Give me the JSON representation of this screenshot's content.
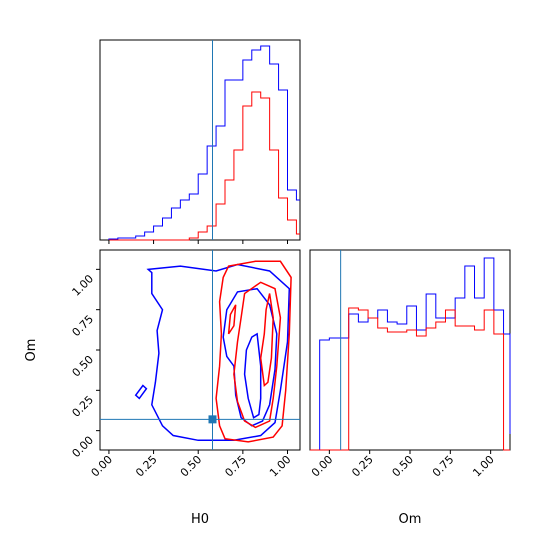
{
  "chart_data": {
    "type": "corner",
    "parameters": [
      "H0",
      "Om"
    ],
    "truth": {
      "H0": 0.58,
      "Om": 0.07
    },
    "colors": {
      "series_a": "#0000ff",
      "series_b": "#ff0000",
      "truth": "#1f77b4"
    },
    "ticks": {
      "H0": [
        "0.00",
        "0.25",
        "0.50",
        "0.75",
        "1.00"
      ],
      "Om": [
        "0.00",
        "0.25",
        "0.50",
        "0.75",
        "1.00"
      ]
    },
    "xlim": [
      -0.05,
      1.07
    ],
    "ylim": [
      -0.12,
      1.12
    ],
    "marginal_H0": {
      "bins": [
        0.0,
        0.05,
        0.1,
        0.15,
        0.2,
        0.25,
        0.3,
        0.35,
        0.4,
        0.45,
        0.5,
        0.55,
        0.6,
        0.65,
        0.7,
        0.75,
        0.8,
        0.85,
        0.9,
        0.95,
        1.0,
        1.05,
        1.07
      ],
      "blue": [
        0.005,
        0.01,
        0.01,
        0.02,
        0.04,
        0.07,
        0.11,
        0.16,
        0.2,
        0.23,
        0.33,
        0.47,
        0.57,
        0.8,
        0.8,
        0.9,
        0.95,
        0.97,
        0.88,
        0.75,
        0.25,
        0.2
      ],
      "red": [
        0.0,
        0.0,
        0.0,
        0.0,
        0.0,
        0.0,
        0.0,
        0.0,
        0.0,
        0.01,
        0.04,
        0.07,
        0.18,
        0.3,
        0.45,
        0.67,
        0.74,
        0.71,
        0.45,
        0.21,
        0.1,
        0.03
      ]
    },
    "marginal_Om": {
      "bins": [
        -0.12,
        -0.06,
        0.0,
        0.06,
        0.12,
        0.18,
        0.24,
        0.3,
        0.36,
        0.42,
        0.48,
        0.54,
        0.6,
        0.66,
        0.72,
        0.78,
        0.84,
        0.9,
        0.96,
        1.02,
        1.08,
        1.12
      ],
      "blue": [
        0.0,
        0.55,
        0.56,
        0.56,
        0.68,
        0.64,
        0.66,
        0.7,
        0.64,
        0.63,
        0.72,
        0.6,
        0.78,
        0.66,
        0.66,
        0.76,
        0.92,
        0.76,
        0.96,
        0.7,
        0.58,
        0.08
      ],
      "red": [
        0.0,
        0.0,
        0.0,
        0.0,
        0.71,
        0.7,
        0.66,
        0.61,
        0.59,
        0.59,
        0.6,
        0.57,
        0.61,
        0.64,
        0.7,
        0.62,
        0.62,
        0.6,
        0.7,
        0.58,
        0.0,
        0.0
      ]
    },
    "contours": {
      "blue": [
        [
          [
            0.22,
            1.0
          ],
          [
            0.4,
            1.02
          ],
          [
            0.6,
            0.99
          ],
          [
            0.72,
            1.03
          ],
          [
            0.9,
            0.99
          ],
          [
            1.01,
            0.88
          ],
          [
            1.0,
            0.55
          ],
          [
            0.96,
            0.25
          ],
          [
            0.93,
            0.05
          ],
          [
            0.85,
            -0.03
          ],
          [
            0.7,
            -0.06
          ],
          [
            0.5,
            -0.06
          ],
          [
            0.36,
            -0.03
          ],
          [
            0.3,
            0.03
          ],
          [
            0.24,
            0.16
          ],
          [
            0.26,
            0.3
          ],
          [
            0.28,
            0.48
          ],
          [
            0.27,
            0.62
          ],
          [
            0.3,
            0.75
          ],
          [
            0.24,
            0.85
          ],
          [
            0.24,
            0.98
          ]
        ],
        [
          [
            0.64,
            0.58
          ],
          [
            0.66,
            0.75
          ],
          [
            0.72,
            0.86
          ],
          [
            0.83,
            0.88
          ],
          [
            0.9,
            0.78
          ],
          [
            0.94,
            0.6
          ],
          [
            0.93,
            0.38
          ],
          [
            0.9,
            0.16
          ],
          [
            0.86,
            0.06
          ],
          [
            0.8,
            0.03
          ],
          [
            0.74,
            0.08
          ],
          [
            0.71,
            0.22
          ],
          [
            0.7,
            0.4
          ],
          [
            0.66,
            0.46
          ]
        ],
        [
          [
            0.76,
            0.35
          ],
          [
            0.77,
            0.5
          ],
          [
            0.8,
            0.58
          ],
          [
            0.83,
            0.6
          ],
          [
            0.85,
            0.4
          ],
          [
            0.85,
            0.2
          ],
          [
            0.84,
            0.1
          ],
          [
            0.81,
            0.08
          ],
          [
            0.78,
            0.2
          ]
        ],
        [
          [
            0.15,
            0.22
          ],
          [
            0.19,
            0.28
          ],
          [
            0.21,
            0.26
          ],
          [
            0.17,
            0.2
          ]
        ]
      ],
      "red": [
        [
          [
            0.67,
            1.02
          ],
          [
            0.82,
            1.05
          ],
          [
            0.96,
            1.05
          ],
          [
            1.02,
            0.95
          ],
          [
            1.01,
            0.6
          ],
          [
            0.99,
            0.25
          ],
          [
            0.97,
            0.03
          ],
          [
            0.92,
            -0.04
          ],
          [
            0.78,
            -0.07
          ],
          [
            0.65,
            -0.05
          ],
          [
            0.62,
            0.03
          ],
          [
            0.6,
            0.2
          ],
          [
            0.62,
            0.4
          ],
          [
            0.63,
            0.6
          ],
          [
            0.62,
            0.8
          ],
          [
            0.64,
            0.95
          ]
        ],
        [
          [
            0.7,
            0.35
          ],
          [
            0.72,
            0.55
          ],
          [
            0.74,
            0.7
          ],
          [
            0.76,
            0.85
          ],
          [
            0.85,
            0.92
          ],
          [
            0.93,
            0.88
          ],
          [
            0.96,
            0.7
          ],
          [
            0.94,
            0.4
          ],
          [
            0.92,
            0.2
          ],
          [
            0.9,
            0.06
          ],
          [
            0.82,
            0.02
          ],
          [
            0.76,
            0.06
          ],
          [
            0.72,
            0.18
          ]
        ],
        [
          [
            0.85,
            0.45
          ],
          [
            0.87,
            0.6
          ],
          [
            0.88,
            0.75
          ],
          [
            0.9,
            0.85
          ],
          [
            0.92,
            0.7
          ],
          [
            0.91,
            0.45
          ],
          [
            0.89,
            0.3
          ],
          [
            0.87,
            0.28
          ]
        ],
        [
          [
            0.68,
            0.72
          ],
          [
            0.71,
            0.78
          ],
          [
            0.7,
            0.65
          ],
          [
            0.67,
            0.6
          ]
        ]
      ]
    }
  }
}
